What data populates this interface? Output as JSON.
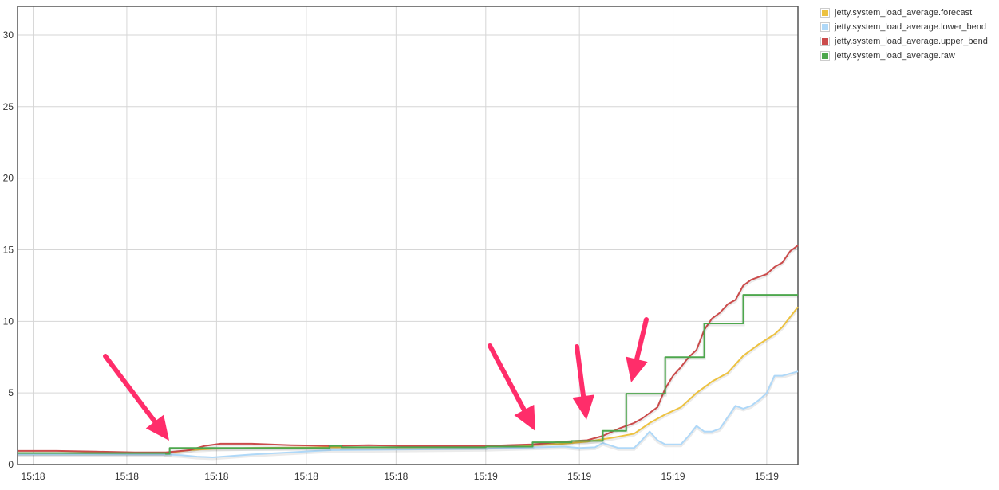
{
  "chart_data": {
    "type": "line",
    "title": "",
    "xlabel": "",
    "ylabel": "",
    "ylim": [
      0,
      32
    ],
    "y_ticks": [
      0,
      5,
      10,
      15,
      20,
      25,
      30
    ],
    "x_range": [
      0,
      100
    ],
    "x_ticks": [
      {
        "x": 2,
        "label": "15:18"
      },
      {
        "x": 14,
        "label": "15:18"
      },
      {
        "x": 25.5,
        "label": "15:18"
      },
      {
        "x": 37,
        "label": "15:18"
      },
      {
        "x": 48.5,
        "label": "15:18"
      },
      {
        "x": 60,
        "label": "15:19"
      },
      {
        "x": 72,
        "label": "15:19"
      },
      {
        "x": 84,
        "label": "15:19"
      },
      {
        "x": 96,
        "label": "15:19"
      }
    ],
    "grid": true,
    "legend_position": "top-right, outside plot",
    "series": [
      {
        "name": "jetty.system_load_average.forecast",
        "color": "#edc240",
        "step": false,
        "points": [
          [
            0,
            0.8
          ],
          [
            10,
            0.8
          ],
          [
            19,
            0.8
          ],
          [
            22,
            1.0
          ],
          [
            25,
            1.1
          ],
          [
            30,
            1.15
          ],
          [
            40,
            1.2
          ],
          [
            50,
            1.2
          ],
          [
            60,
            1.25
          ],
          [
            66,
            1.35
          ],
          [
            70,
            1.45
          ],
          [
            73,
            1.6
          ],
          [
            76,
            1.85
          ],
          [
            78,
            2.05
          ],
          [
            79,
            2.15
          ],
          [
            81,
            2.9
          ],
          [
            83,
            3.5
          ],
          [
            85,
            4.0
          ],
          [
            87,
            5.0
          ],
          [
            89,
            5.8
          ],
          [
            91,
            6.4
          ],
          [
            93,
            7.6
          ],
          [
            95,
            8.4
          ],
          [
            97,
            9.1
          ],
          [
            98,
            9.6
          ],
          [
            100,
            11.0
          ]
        ]
      },
      {
        "name": "jetty.system_load_average.lower_bend",
        "color": "#afd8f8",
        "step": false,
        "points": [
          [
            0,
            0.7
          ],
          [
            10,
            0.7
          ],
          [
            19,
            0.7
          ],
          [
            21,
            0.65
          ],
          [
            23,
            0.55
          ],
          [
            25,
            0.5
          ],
          [
            30,
            0.7
          ],
          [
            40,
            1.0
          ],
          [
            50,
            1.05
          ],
          [
            60,
            1.1
          ],
          [
            67,
            1.2
          ],
          [
            70,
            1.25
          ],
          [
            72,
            1.15
          ],
          [
            74,
            1.2
          ],
          [
            75,
            1.5
          ],
          [
            77,
            1.15
          ],
          [
            79,
            1.15
          ],
          [
            80,
            1.7
          ],
          [
            81,
            2.3
          ],
          [
            82,
            1.7
          ],
          [
            83,
            1.4
          ],
          [
            85,
            1.4
          ],
          [
            86,
            2.0
          ],
          [
            87,
            2.7
          ],
          [
            88,
            2.3
          ],
          [
            89,
            2.3
          ],
          [
            90,
            2.5
          ],
          [
            92,
            4.1
          ],
          [
            93,
            3.9
          ],
          [
            94,
            4.1
          ],
          [
            95,
            4.5
          ],
          [
            96,
            5.0
          ],
          [
            97,
            6.2
          ],
          [
            98,
            6.2
          ],
          [
            100,
            6.5
          ]
        ]
      },
      {
        "name": "jetty.system_load_average.upper_bend",
        "color": "#cb4b4b",
        "step": false,
        "points": [
          [
            0,
            0.95
          ],
          [
            5,
            0.95
          ],
          [
            10,
            0.9
          ],
          [
            15,
            0.85
          ],
          [
            19,
            0.85
          ],
          [
            22,
            1.0
          ],
          [
            24,
            1.3
          ],
          [
            26,
            1.45
          ],
          [
            30,
            1.45
          ],
          [
            35,
            1.35
          ],
          [
            40,
            1.3
          ],
          [
            45,
            1.35
          ],
          [
            50,
            1.3
          ],
          [
            55,
            1.3
          ],
          [
            60,
            1.3
          ],
          [
            66,
            1.4
          ],
          [
            70,
            1.6
          ],
          [
            73,
            1.7
          ],
          [
            75,
            2.0
          ],
          [
            77,
            2.5
          ],
          [
            79,
            2.9
          ],
          [
            80,
            3.2
          ],
          [
            82,
            4.0
          ],
          [
            83,
            5.3
          ],
          [
            84,
            6.2
          ],
          [
            85,
            6.8
          ],
          [
            86,
            7.5
          ],
          [
            87,
            8.0
          ],
          [
            88,
            9.4
          ],
          [
            89,
            10.2
          ],
          [
            90,
            10.6
          ],
          [
            91,
            11.2
          ],
          [
            92,
            11.5
          ],
          [
            93,
            12.5
          ],
          [
            94,
            12.9
          ],
          [
            95,
            13.1
          ],
          [
            96,
            13.3
          ],
          [
            97,
            13.8
          ],
          [
            98,
            14.1
          ],
          [
            99,
            14.9
          ],
          [
            100,
            15.3
          ]
        ]
      },
      {
        "name": "jetty.system_load_average.raw",
        "color": "#4da74d",
        "step": true,
        "points": [
          [
            0,
            0.8
          ],
          [
            19,
            0.75
          ],
          [
            19.5,
            1.15
          ],
          [
            40,
            1.3
          ],
          [
            41.5,
            1.2
          ],
          [
            60,
            1.25
          ],
          [
            66,
            1.55
          ],
          [
            71,
            1.65
          ],
          [
            75,
            2.35
          ],
          [
            78,
            4.95
          ],
          [
            83,
            7.5
          ],
          [
            88,
            9.85
          ],
          [
            93,
            11.85
          ],
          [
            100,
            11.85
          ]
        ]
      }
    ]
  }
}
